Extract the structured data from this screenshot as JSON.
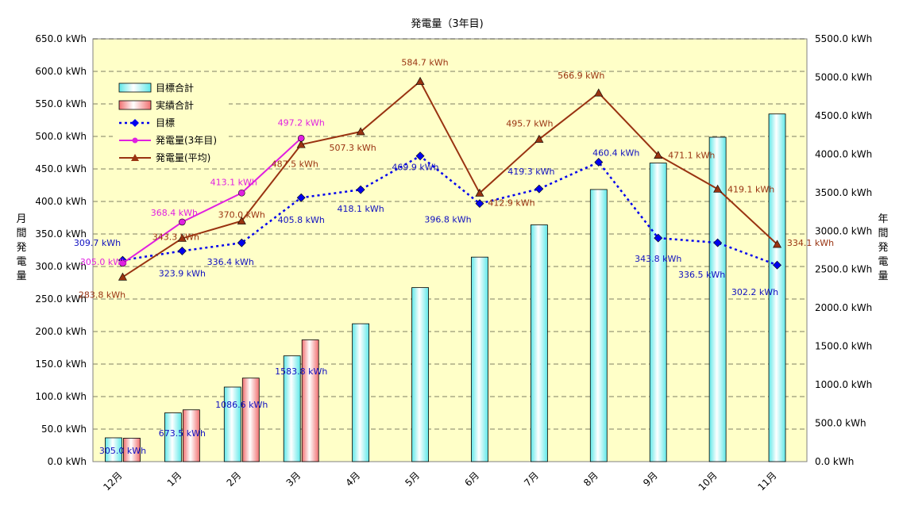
{
  "chart_data": {
    "type": "bar",
    "title": "発電量（3年目)",
    "ylabel_left": [
      "月",
      "間",
      "発",
      "電",
      "量"
    ],
    "ylabel_right": [
      "年",
      "間",
      "発",
      "電",
      "量"
    ],
    "categories": [
      "12月",
      "1月",
      "2月",
      "3月",
      "4月",
      "5月",
      "6月",
      "7月",
      "8月",
      "9月",
      "10月",
      "11月"
    ],
    "y_left_ticks": [
      "0.0 kWh",
      "50.0 kWh",
      "100.0 kWh",
      "150.0 kWh",
      "200.0 kWh",
      "250.0 kWh",
      "300.0 kWh",
      "350.0 kWh",
      "400.0 kWh",
      "450.0 kWh",
      "500.0 kWh",
      "550.0 kWh",
      "600.0 kWh",
      "650.0 kWh"
    ],
    "y_right_ticks": [
      "0.0 kWh",
      "500.0 kWh",
      "1000.0 kWh",
      "1500.0 kWh",
      "2000.0 kWh",
      "2500.0 kWh",
      "3000.0 kWh",
      "3500.0 kWh",
      "4000.0 kWh",
      "4500.0 kWh",
      "5000.0 kWh",
      "5500.0 kWh"
    ],
    "ylim_left": [
      0,
      650
    ],
    "ylim_right": [
      0,
      5500
    ],
    "grid": true,
    "legend_position": "top-left",
    "series": [
      {
        "name": "目標合計",
        "kind": "bar",
        "axis": "right",
        "color": "#5fe8e8",
        "values": [
          309.7,
          633.6,
          970.0,
          1375.8,
          1793.9,
          2263.8,
          2660.6,
          3079.9,
          3540.3,
          3884.1,
          4220.6,
          4522.8
        ],
        "labels": [
          "",
          "",
          "",
          "",
          "",
          "",
          "",
          "",
          "",
          "",
          "",
          ""
        ]
      },
      {
        "name": "実績合計",
        "kind": "bar",
        "axis": "right",
        "color": "#f07070",
        "values": [
          305.0,
          673.5,
          1086.6,
          1583.8,
          null,
          null,
          null,
          null,
          null,
          null,
          null,
          null
        ],
        "labels": [
          "305.0 kWh",
          "673.5 kWh",
          "1086.6 kWh",
          "1583.8 kWh",
          "",
          "",
          "",
          "",
          "",
          "",
          "",
          ""
        ]
      },
      {
        "name": "目標",
        "kind": "line",
        "axis": "left",
        "color": "#0000ee",
        "dash": true,
        "marker": "diamond",
        "values": [
          309.7,
          323.9,
          336.4,
          405.8,
          418.1,
          469.9,
          396.8,
          419.3,
          460.4,
          343.8,
          336.5,
          302.2
        ],
        "labels": [
          "309.7 kWh",
          "323.9 kWh",
          "336.4 kWh",
          "405.8 kWh",
          "418.1 kWh",
          "469.9 kWh",
          "396.8 kWh",
          "419.3 kWh",
          "460.4 kWh",
          "343.8 kWh",
          "336.5 kWh",
          "302.2 kWh"
        ]
      },
      {
        "name": "発電量(3年目)",
        "kind": "line",
        "axis": "left",
        "color": "#e020e0",
        "marker": "circle",
        "values": [
          305.0,
          368.4,
          413.1,
          497.2,
          null,
          null,
          null,
          null,
          null,
          null,
          null,
          null
        ],
        "labels": [
          "305.0 kWh",
          "368.4 kWh",
          "413.1 kWh",
          "497.2 kWh",
          "",
          "",
          "",
          "",
          "",
          "",
          "",
          ""
        ]
      },
      {
        "name": "発電量(平均)",
        "kind": "line",
        "axis": "left",
        "color": "#993311",
        "marker": "triangle",
        "values": [
          283.8,
          343.3,
          370.0,
          487.5,
          507.3,
          584.7,
          412.9,
          495.7,
          566.9,
          471.1,
          419.1,
          334.1
        ],
        "labels": [
          "283.8 kWh",
          "343.3 kWh",
          "370.0 kWh",
          "487.5 kWh",
          "507.3 kWh",
          "584.7 kWh",
          "412.9 kWh",
          "495.7 kWh",
          "566.9 kWh",
          "471.1 kWh",
          "419.1 kWh",
          "334.1 kWh"
        ]
      }
    ]
  }
}
